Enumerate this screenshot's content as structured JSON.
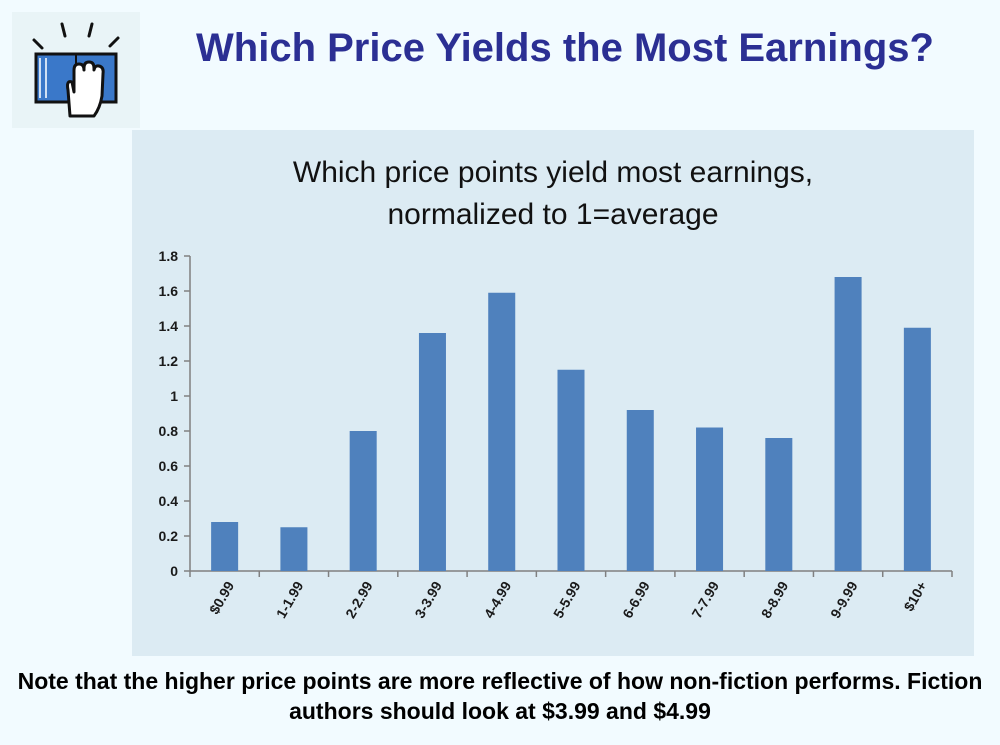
{
  "slide": {
    "title": "Which Price Yields the Most Earnings?",
    "footnote": "Note that the higher price points are more reflective of how non-fiction performs.  Fiction authors should look at $3.99 and $4.99",
    "logo_icon": "book-hand-icon",
    "title_color": "#2b2f93"
  },
  "chart_data": {
    "type": "bar",
    "title_lines": [
      "Which price points yield most earnings,",
      "normalized to 1=average"
    ],
    "categories": [
      "$0.99",
      "1-1.99",
      "2-2.99",
      "3-3.99",
      "4-4.99",
      "5-5.99",
      "6-6.99",
      "7-7.99",
      "8-8.99",
      "9-9.99",
      "$10+"
    ],
    "values": [
      0.28,
      0.25,
      0.8,
      1.36,
      1.59,
      1.15,
      0.92,
      0.82,
      0.76,
      1.68,
      1.39
    ],
    "ylim": [
      0,
      1.8
    ],
    "yticks": [
      "0",
      "0.2",
      "0.4",
      "0.6",
      "0.8",
      "1",
      "1.2",
      "1.4",
      "1.6",
      "1.8"
    ],
    "bar_color": "#4f81bd",
    "background": "#dcebf3",
    "grid": false,
    "legend": "none"
  }
}
